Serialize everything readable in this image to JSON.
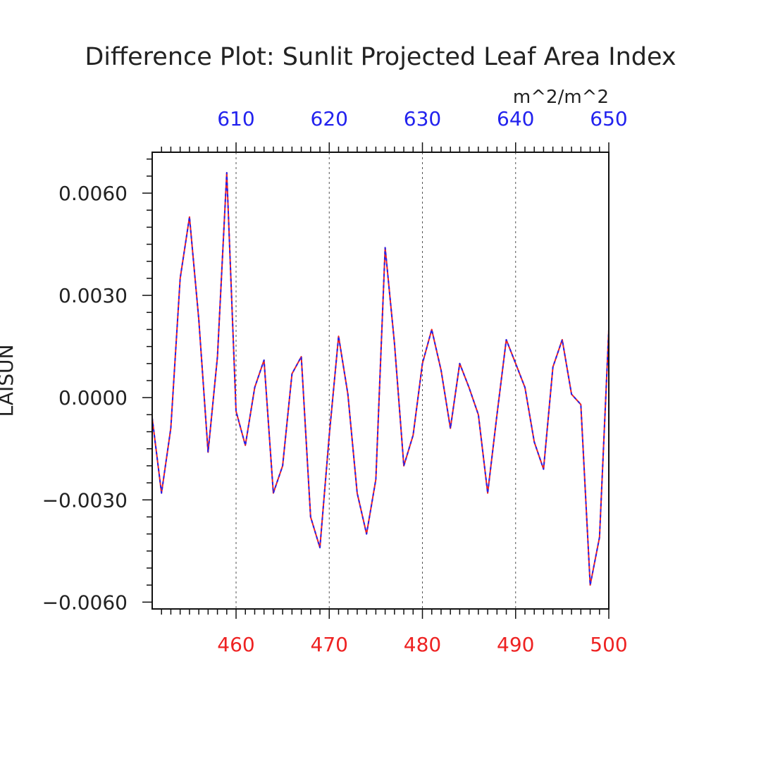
{
  "chart_data": {
    "type": "line",
    "title": "Difference Plot: Sunlit Projected Leaf Area Index",
    "units": "m^2/m^2",
    "ylabel": "LAISUN",
    "xlabel": "",
    "xlim": [
      451,
      500
    ],
    "ylim": [
      -0.0062,
      0.0072
    ],
    "top_axis": {
      "color": "#2222ee",
      "ticks": [
        610,
        620,
        630,
        640,
        650
      ],
      "range": [
        601,
        650
      ]
    },
    "bottom_axis": {
      "color": "#ee2222",
      "ticks": [
        460,
        470,
        480,
        490,
        500
      ]
    },
    "y_ticks": [
      {
        "value": 0.006,
        "label": "0.0060"
      },
      {
        "value": 0.003,
        "label": "0.0030"
      },
      {
        "value": 0.0,
        "label": "0.0000"
      },
      {
        "value": -0.003,
        "label": "−0.0030"
      },
      {
        "value": -0.006,
        "label": "−0.0060"
      }
    ],
    "grid": "vertical dashed",
    "series": [
      {
        "color": "#ee2222",
        "style": "solid",
        "x": [
          451,
          452,
          453,
          454,
          455,
          456,
          457,
          458,
          459,
          460,
          461,
          462,
          463,
          464,
          465,
          466,
          467,
          468,
          469,
          470,
          471,
          472,
          473,
          474,
          475,
          476,
          477,
          478,
          479,
          480,
          481,
          482,
          483,
          484,
          485,
          486,
          487,
          488,
          489,
          490,
          491,
          492,
          493,
          494,
          495,
          496,
          497,
          498,
          499,
          500
        ],
        "values": [
          -0.0006,
          -0.0028,
          -0.0009,
          0.0035,
          0.0053,
          0.0023,
          -0.0016,
          0.0012,
          0.0066,
          -0.0004,
          -0.0014,
          0.0003,
          0.0011,
          -0.0028,
          -0.002,
          0.0007,
          0.0012,
          -0.0035,
          -0.0044,
          -0.0011,
          0.0018,
          0.0001,
          -0.0028,
          -0.004,
          -0.0024,
          0.0044,
          0.0016,
          -0.002,
          -0.0011,
          0.001,
          0.002,
          0.0008,
          -0.0009,
          0.001,
          0.0003,
          -0.0005,
          -0.0028,
          -0.0005,
          0.0017,
          0.001,
          0.0003,
          -0.0013,
          -0.0021,
          0.0009,
          0.0017,
          0.0001,
          -0.0002,
          -0.0055,
          -0.0041,
          0.002
        ]
      },
      {
        "color": "#2222ee",
        "style": "dashed",
        "x": [
          451,
          452,
          453,
          454,
          455,
          456,
          457,
          458,
          459,
          460,
          461,
          462,
          463,
          464,
          465,
          466,
          467,
          468,
          469,
          470,
          471,
          472,
          473,
          474,
          475,
          476,
          477,
          478,
          479,
          480,
          481,
          482,
          483,
          484,
          485,
          486,
          487,
          488,
          489,
          490,
          491,
          492,
          493,
          494,
          495,
          496,
          497,
          498,
          499,
          500
        ],
        "values": [
          -0.0006,
          -0.0028,
          -0.0009,
          0.0035,
          0.0053,
          0.0023,
          -0.0016,
          0.0012,
          0.0066,
          -0.0004,
          -0.0014,
          0.0003,
          0.0011,
          -0.0028,
          -0.002,
          0.0007,
          0.0012,
          -0.0035,
          -0.0044,
          -0.0011,
          0.0018,
          0.0001,
          -0.0028,
          -0.004,
          -0.0024,
          0.0044,
          0.0016,
          -0.002,
          -0.0011,
          0.001,
          0.002,
          0.0008,
          -0.0009,
          0.001,
          0.0003,
          -0.0005,
          -0.0028,
          -0.0005,
          0.0017,
          0.001,
          0.0003,
          -0.0013,
          -0.0021,
          0.0009,
          0.0017,
          0.0001,
          -0.0002,
          -0.0055,
          -0.0041,
          0.002
        ]
      }
    ]
  }
}
